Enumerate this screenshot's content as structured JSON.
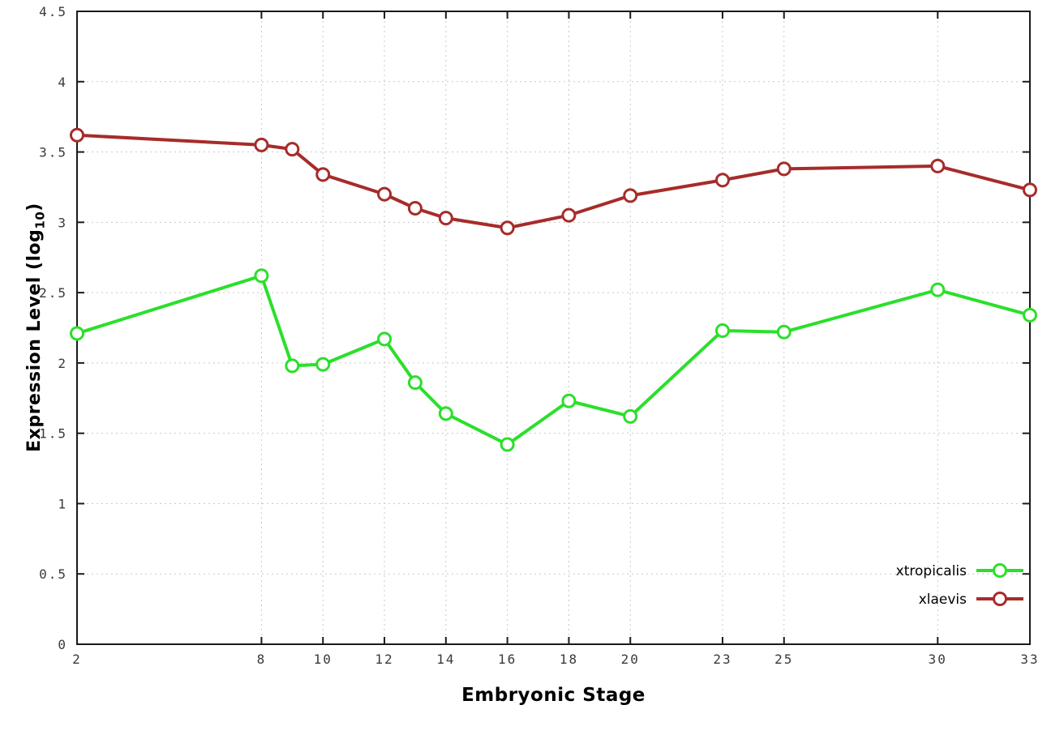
{
  "chart_data": {
    "type": "line",
    "title": "",
    "xlabel": "Embryonic Stage",
    "ylabel": "Expression Level (log10)",
    "ylabel_parts": {
      "prefix": "Expression Level (log",
      "sub": "10",
      "suffix": ")"
    },
    "xlim": [
      2,
      33
    ],
    "ylim": [
      0,
      4.5
    ],
    "xticks": [
      2,
      8,
      10,
      12,
      14,
      16,
      18,
      20,
      23,
      25,
      30,
      33
    ],
    "yticks": [
      0,
      0.5,
      1,
      1.5,
      2,
      2.5,
      3,
      3.5,
      4,
      4.5
    ],
    "ytick_labels": [
      "0",
      "0.5",
      "1",
      "1.5",
      "2",
      "2.5",
      "3",
      "3.5",
      "4",
      "4.5"
    ],
    "x": [
      2,
      8,
      9,
      10,
      12,
      13,
      14,
      16,
      18,
      20,
      23,
      25,
      30,
      33
    ],
    "series": [
      {
        "name": "xtropicalis",
        "color": "#2bdf2b",
        "values": [
          2.21,
          2.62,
          1.98,
          1.99,
          2.17,
          1.86,
          1.64,
          1.42,
          1.73,
          1.62,
          2.23,
          2.22,
          2.52,
          2.34
        ]
      },
      {
        "name": "xlaevis",
        "color": "#a62c2a",
        "values": [
          3.62,
          3.55,
          3.52,
          3.34,
          3.2,
          3.1,
          3.03,
          2.96,
          3.05,
          3.19,
          3.3,
          3.38,
          3.4,
          3.23
        ]
      }
    ],
    "legend_position": "bottom-right",
    "grid": true,
    "grid_color": "#c8c8c8",
    "border_color": "#1a1a1a",
    "background": "#ffffff",
    "marker": "open-circle"
  }
}
